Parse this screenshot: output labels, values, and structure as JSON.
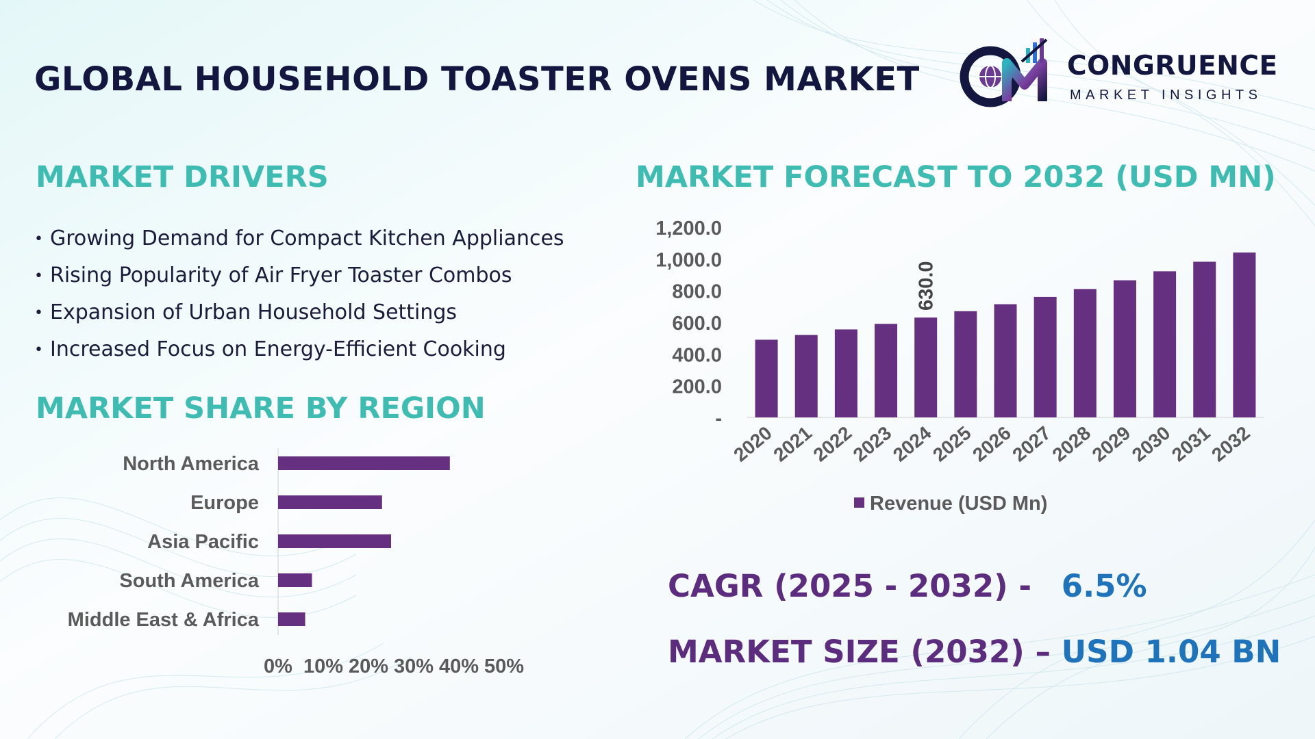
{
  "title": "GLOBAL HOUSEHOLD TOASTER OVENS MARKET",
  "logo": {
    "icon_letters": "CM",
    "name": "CONGRUENCE",
    "subtitle": "MARKET INSIGHTS"
  },
  "drivers": {
    "heading": "MARKET DRIVERS",
    "bullet": "•",
    "items": [
      "Growing Demand for Compact Kitchen Appliances",
      "Rising Popularity of Air Fryer Toaster Combos",
      "Expansion of Urban Household Settings",
      "Increased Focus on Energy-Efficient Cooking"
    ]
  },
  "region": {
    "heading": "MARKET SHARE BY REGION"
  },
  "forecast": {
    "heading": "MARKET FORECAST TO 2032 (USD MN)"
  },
  "stats": {
    "cagr_label": "CAGR (2025 - 2032) -",
    "cagr_value": "6.5%",
    "size_label": "MARKET SIZE (2032) –",
    "size_value": "USD 1.04 BN"
  },
  "colors": {
    "bar": "#64307f",
    "heading": "#3fbcb2",
    "title": "#13163e",
    "stat_label": "#5c2d7e",
    "stat_value": "#1e73ba",
    "axis_text": "#5a5a5a"
  },
  "chart_data": [
    {
      "type": "bar",
      "orientation": "vertical",
      "categories": [
        "2020",
        "2021",
        "2022",
        "2023",
        "2024",
        "2025",
        "2026",
        "2027",
        "2028",
        "2029",
        "2030",
        "2031",
        "2032"
      ],
      "series": [
        {
          "name": "Revenue (USD Mn)",
          "values": [
            490,
            520,
            555,
            590,
            630,
            670,
            714,
            760,
            810,
            865,
            922,
            982,
            1040
          ]
        }
      ],
      "data_labels": [
        {
          "index": 4,
          "text": "630.0"
        }
      ],
      "ylim": [
        0,
        1200
      ],
      "yticks": [
        0,
        200,
        400,
        600,
        800,
        1000,
        1200
      ],
      "ytick_labels": [
        "-",
        "200.0",
        "400.0",
        "600.0",
        "800.0",
        "1,000.0",
        "1,200.0"
      ],
      "legend": "bottom",
      "grid": false
    },
    {
      "type": "bar",
      "orientation": "horizontal",
      "categories": [
        "North America",
        "Europe",
        "Asia Pacific",
        "South America",
        "Middle East & Africa"
      ],
      "values": [
        0.38,
        0.23,
        0.25,
        0.075,
        0.06
      ],
      "xlim": [
        0,
        0.5
      ],
      "xtick_labels": [
        "0%",
        "10%",
        "20%",
        "30%",
        "40%",
        "50%"
      ],
      "grid": false
    }
  ]
}
